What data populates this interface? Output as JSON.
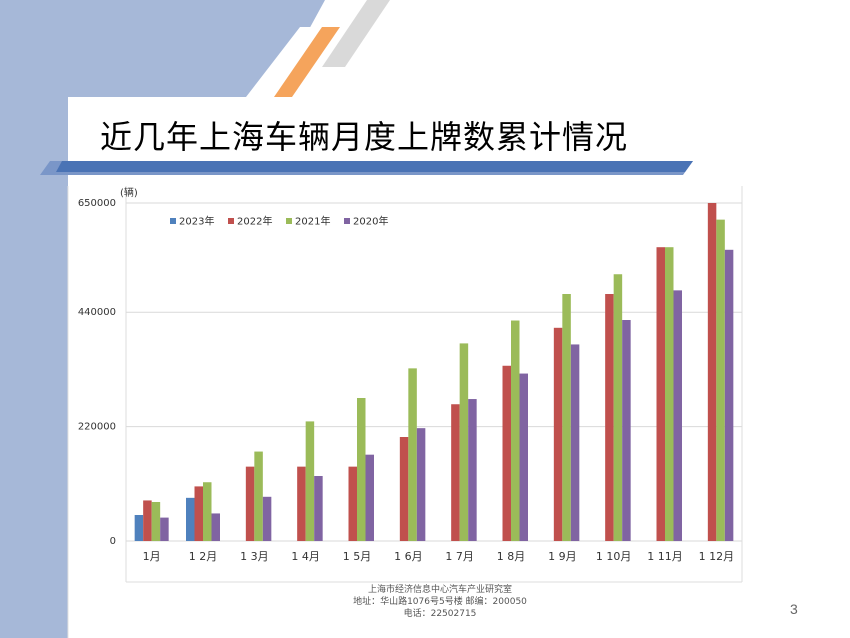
{
  "slide": {
    "title": "近几年上海车辆月度上牌数累计情况",
    "page_number": "3",
    "colors": {
      "left_panel": "#a6b8d8",
      "title_band": "#4a73b5",
      "accent_orange": "#f5a45c",
      "accent_gray": "#d9d9d9"
    }
  },
  "footer": {
    "org": "上海市经济信息中心汽车产业研究室",
    "address": "地址：华山路1076号5号楼    邮编：200050",
    "phone": "电话：22502715"
  },
  "chart_data": {
    "type": "bar",
    "ylabel": "(辆)",
    "ylim": [
      0,
      650000
    ],
    "yticks": [
      0,
      220000,
      440000,
      650000
    ],
    "ytick_labels": [
      "0",
      "220000",
      "440000",
      "650000"
    ],
    "categories": [
      "1月",
      "1 2月",
      "1 3月",
      "1 4月",
      "1 5月",
      "1 6月",
      "1 7月",
      "1 8月",
      "1 9月",
      "1 10月",
      "1 11月",
      "1 12月"
    ],
    "legend_position": "top-left",
    "series": [
      {
        "name": "2023年",
        "color": "#4f81bd",
        "values": [
          50000,
          83000,
          null,
          null,
          null,
          null,
          null,
          null,
          null,
          null,
          null,
          null
        ]
      },
      {
        "name": "2022年",
        "color": "#c0504d",
        "values": [
          78000,
          105000,
          143000,
          143000,
          143000,
          200000,
          263000,
          337000,
          410000,
          475000,
          565000,
          650000
        ]
      },
      {
        "name": "2021年",
        "color": "#9bbb59",
        "values": [
          75000,
          113000,
          172000,
          230000,
          275000,
          332000,
          380000,
          424000,
          475000,
          513000,
          565000,
          618000
        ]
      },
      {
        "name": "2020年",
        "color": "#8064a2",
        "values": [
          45000,
          53000,
          85000,
          125000,
          166000,
          217000,
          273000,
          322000,
          378000,
          425000,
          482000,
          560000
        ]
      }
    ]
  }
}
